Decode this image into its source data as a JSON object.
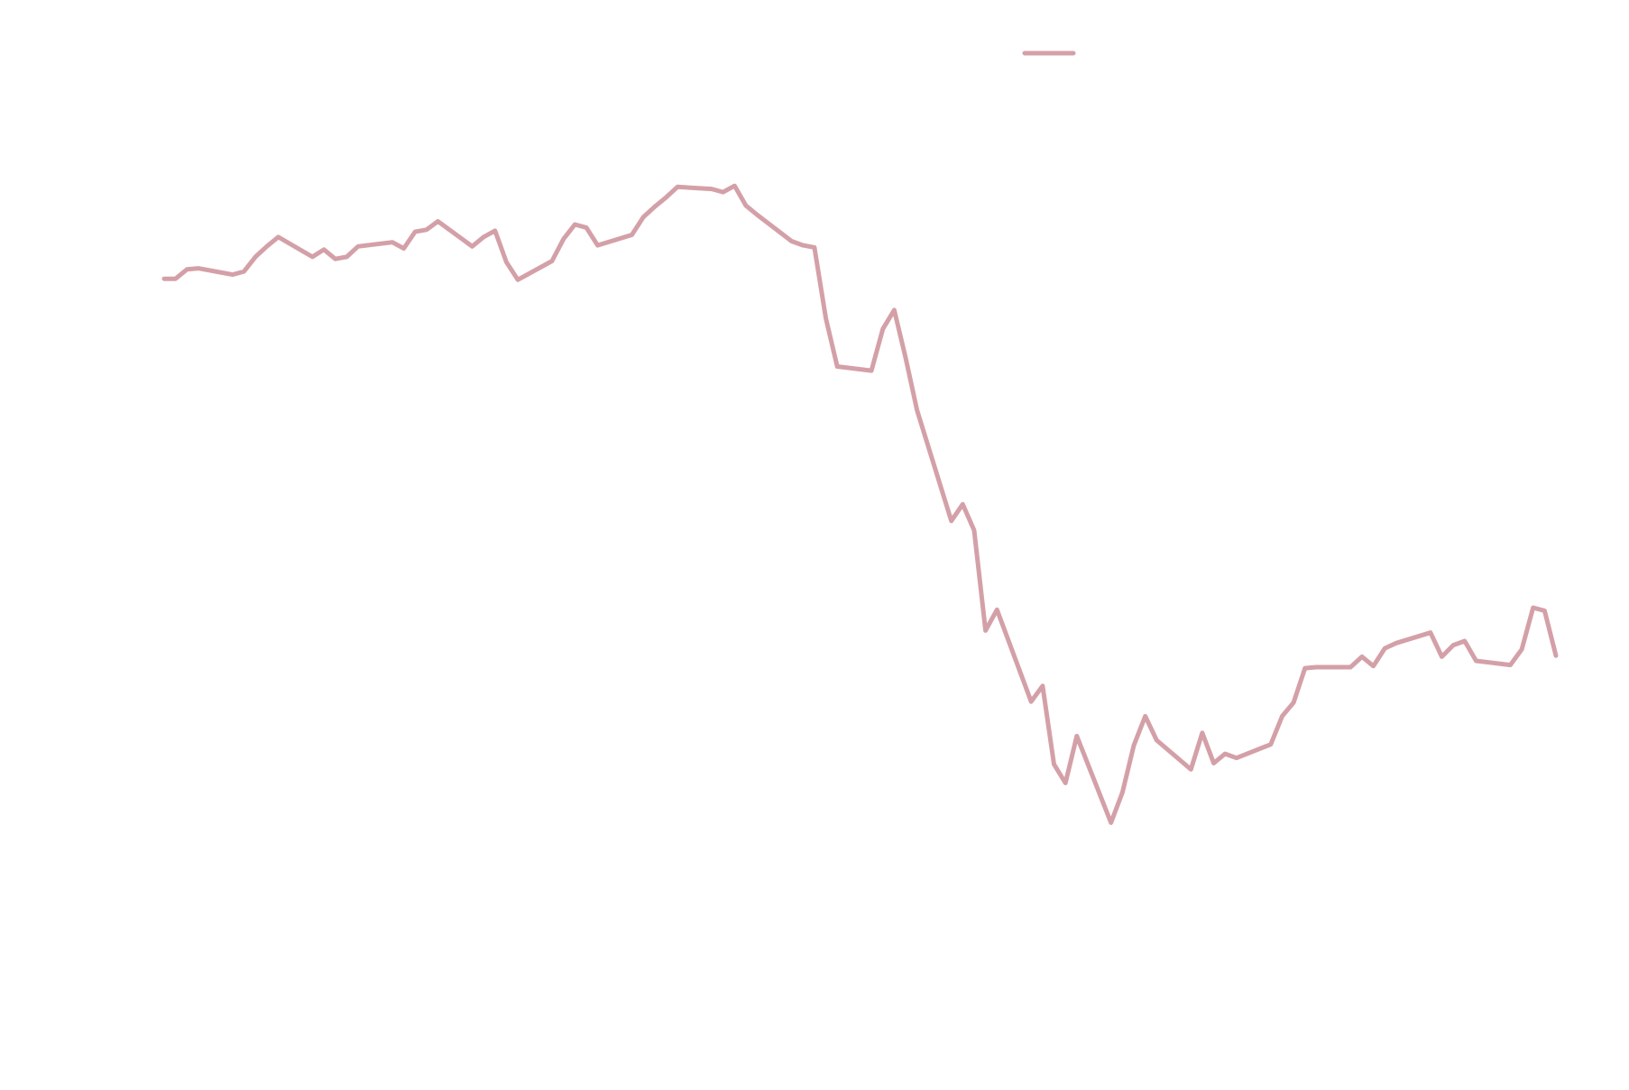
{
  "chart_data": {
    "type": "line",
    "x": [
      0,
      1,
      2,
      3,
      6,
      7,
      8,
      9,
      10,
      13,
      14,
      15,
      16,
      17,
      20,
      21,
      22,
      23,
      24,
      27,
      28,
      29,
      30,
      31,
      34,
      35,
      36,
      37,
      38,
      41,
      42,
      43,
      44,
      45,
      48,
      49,
      50,
      51,
      52,
      55,
      56,
      57,
      58,
      59,
      62,
      63,
      64,
      65,
      66,
      69,
      70,
      71,
      72,
      73,
      76,
      77,
      78,
      79,
      80,
      83,
      84,
      85,
      86,
      87,
      90,
      91,
      92,
      93,
      94,
      97,
      98,
      99,
      100,
      101,
      104,
      105,
      106,
      107,
      108,
      111,
      112,
      113,
      114,
      115,
      118,
      119,
      120,
      121,
      122
    ],
    "series": [
      {
        "color": "#d4a0a8",
        "values": [
          73.3,
          73.3,
          74.2,
          74.3,
          73.7,
          74.0,
          75.4,
          76.4,
          77.3,
          75.4,
          76.1,
          75.2,
          75.4,
          76.4,
          76.8,
          76.2,
          77.8,
          78.0,
          78.8,
          76.4,
          77.3,
          77.9,
          74.9,
          73.2,
          75.0,
          77.1,
          78.5,
          78.2,
          76.5,
          77.5,
          79.2,
          80.2,
          81.1,
          82.1,
          81.9,
          81.6,
          82.2,
          80.3,
          79.4,
          76.9,
          76.5,
          76.3,
          69.5,
          64.9,
          64.5,
          68.5,
          70.3,
          65.7,
          60.7,
          50.1,
          51.7,
          49.2,
          39.6,
          41.6,
          32.8,
          34.3,
          26.8,
          25.0,
          29.5,
          21.2,
          24.1,
          28.6,
          31.4,
          29.1,
          26.3,
          29.8,
          26.9,
          27.8,
          27.4,
          28.7,
          31.4,
          32.7,
          36.0,
          36.1,
          36.1,
          37.1,
          36.2,
          37.9,
          38.4,
          39.4,
          37.1,
          38.2,
          38.6,
          36.7,
          36.3,
          37.8,
          41.8,
          41.5,
          37.2
        ]
      }
    ],
    "xlim": [
      0,
      122
    ],
    "ylim": [
      0,
      100
    ],
    "legend": "top"
  }
}
